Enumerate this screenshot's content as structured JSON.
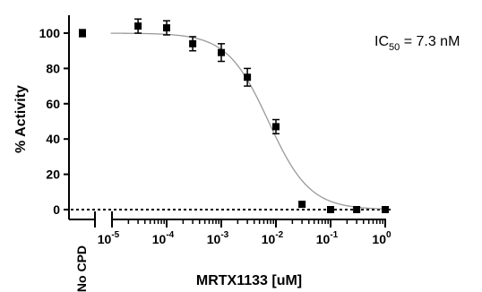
{
  "chart_data": {
    "type": "scatter",
    "title": "",
    "xlabel": "MRTX1133 [uM]",
    "ylabel": "% Activity",
    "xscale": "log",
    "xlim": [
      5e-06,
      1.3
    ],
    "ylim": [
      -5,
      110
    ],
    "y_ticks": [
      "0",
      "20",
      "40",
      "60",
      "80",
      "100"
    ],
    "x_ticks": [
      {
        "base": "10",
        "exp": "-5",
        "value": 1e-05
      },
      {
        "base": "10",
        "exp": "-4",
        "value": 0.0001
      },
      {
        "base": "10",
        "exp": "-3",
        "value": 0.001
      },
      {
        "base": "10",
        "exp": "-2",
        "value": 0.01
      },
      {
        "base": "10",
        "exp": "-1",
        "value": 0.1
      },
      {
        "base": "10",
        "exp": "0",
        "value": 1
      }
    ],
    "control": {
      "label": "No CPD",
      "y": 100,
      "err": 2
    },
    "points": [
      {
        "x": 3e-05,
        "y": 104,
        "err": 4
      },
      {
        "x": 0.0001,
        "y": 103,
        "err": 4
      },
      {
        "x": 0.0003,
        "y": 94,
        "err": 4
      },
      {
        "x": 0.001,
        "y": 89,
        "err": 5
      },
      {
        "x": 0.003,
        "y": 75,
        "err": 5
      },
      {
        "x": 0.01,
        "y": 47,
        "err": 4
      },
      {
        "x": 0.03,
        "y": 3,
        "err": 1
      },
      {
        "x": 0.1,
        "y": 0,
        "err": 0.5
      },
      {
        "x": 0.3,
        "y": 0,
        "err": 0.5
      },
      {
        "x": 1,
        "y": 0,
        "err": 0.5
      }
    ],
    "fit": {
      "top": 100,
      "bottom": 0,
      "ic50": 0.0073,
      "hill": 1.15
    },
    "baseline": {
      "y": 0,
      "style": "dotted"
    },
    "annotation": {
      "prefix": "IC",
      "sub": "50",
      "suffix": " = 7.3 nM"
    },
    "grid": false,
    "legend": "none",
    "colors": {
      "marker": "#000000",
      "fit_line": "#9a9a9a",
      "axis": "#000000"
    }
  }
}
